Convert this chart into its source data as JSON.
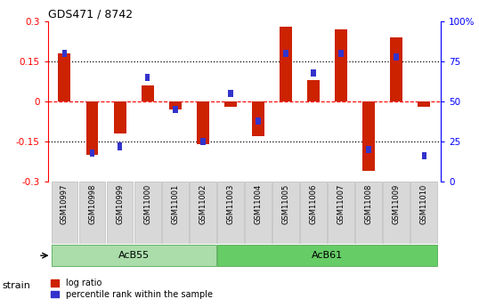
{
  "title": "GDS471 / 8742",
  "samples": [
    "GSM10997",
    "GSM10998",
    "GSM10999",
    "GSM11000",
    "GSM11001",
    "GSM11002",
    "GSM11003",
    "GSM11004",
    "GSM11005",
    "GSM11006",
    "GSM11007",
    "GSM11008",
    "GSM11009",
    "GSM11010"
  ],
  "log_ratio": [
    0.18,
    -0.2,
    -0.12,
    0.06,
    -0.03,
    -0.16,
    -0.02,
    -0.13,
    0.28,
    0.08,
    0.27,
    -0.26,
    0.24,
    -0.02
  ],
  "percentile_rank": [
    80,
    18,
    22,
    65,
    45,
    25,
    55,
    38,
    80,
    68,
    80,
    20,
    78,
    16
  ],
  "groups": [
    {
      "label": "AcB55",
      "start": 0,
      "end": 5,
      "color": "#90ee90"
    },
    {
      "label": "AcB61",
      "start": 6,
      "end": 13,
      "color": "#44cc44"
    }
  ],
  "ylim_left": [
    -0.3,
    0.3
  ],
  "ylim_right": [
    0,
    100
  ],
  "yticks_left": [
    -0.3,
    -0.15,
    0.0,
    0.15,
    0.3
  ],
  "ytick_labels_left": [
    "-0.3",
    "-0.15",
    "0",
    "0.15",
    "0.3"
  ],
  "yticks_right": [
    0,
    25,
    50,
    75,
    100
  ],
  "ytick_labels_right": [
    "0",
    "25",
    "50",
    "75",
    "100%"
  ],
  "bar_color_red": "#cc2200",
  "bar_color_blue": "#3333cc",
  "legend_items": [
    "log ratio",
    "percentile rank within the sample"
  ],
  "xlabel_strain": "strain",
  "background_labels": "#d8d8d8",
  "group_color_1": "#aaddaa",
  "group_color_2": "#66cc66"
}
